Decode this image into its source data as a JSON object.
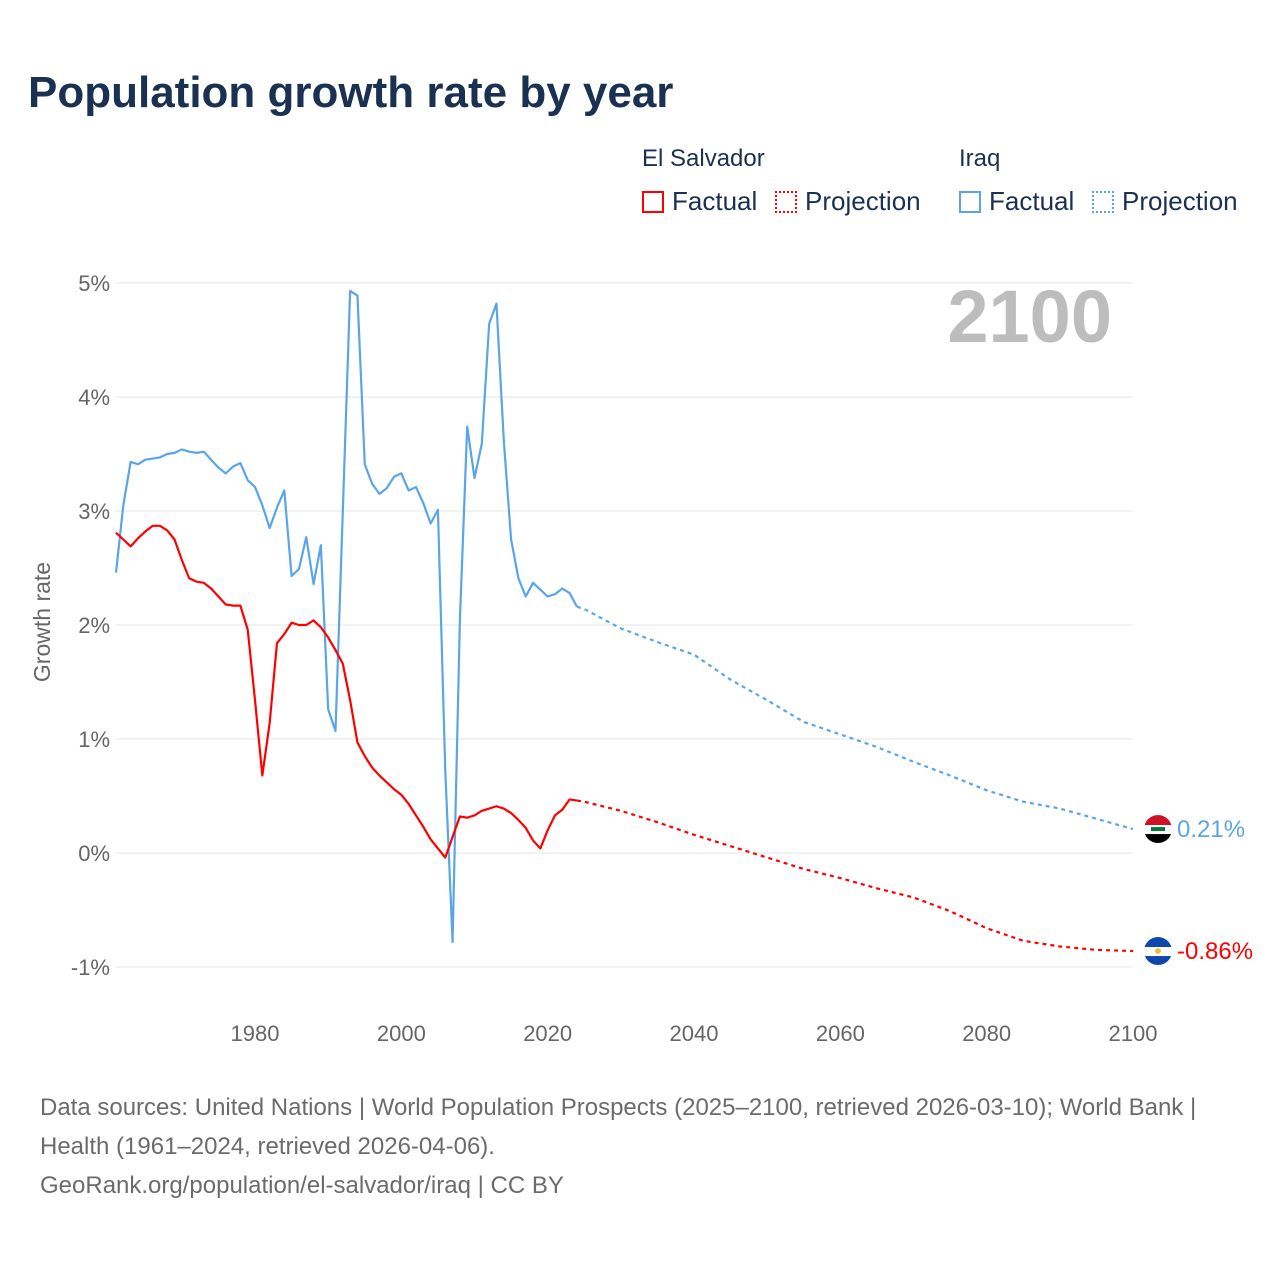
{
  "title": "Population growth rate by year",
  "legend": {
    "groups": [
      {
        "name": "El Salvador",
        "factual": "Factual",
        "projection": "Projection",
        "color": "#ff0000"
      },
      {
        "name": "Iraq",
        "factual": "Factual",
        "projection": "Projection",
        "color": "#5aa5e8"
      }
    ]
  },
  "footer": {
    "sources": "Data sources: United Nations | World Population Prospects (2025–2100, retrieved 2026-03-10); World Bank | Health (1961–2024, retrieved 2026-04-06).",
    "credit": "GeoRank.org/population/el-salvador/iraq | CC BY"
  },
  "chart_data": {
    "type": "line",
    "title": "Population growth rate by year",
    "year_label": "2100",
    "ylabel": "Growth rate",
    "xlim": [
      1961,
      2100
    ],
    "ylim": [
      -1.3,
      5.1
    ],
    "xticks": [
      "1980",
      "2000",
      "2020",
      "2040",
      "2060",
      "2080",
      "2100"
    ],
    "yticks": [
      "-1%",
      "0%",
      "1%",
      "2%",
      "3%",
      "4%",
      "5%"
    ],
    "grid": true,
    "series": [
      {
        "name": "Iraq",
        "color": "#5aa5e8",
        "end_label": "0.21%",
        "flag": "iraq-flag",
        "factual_start": 1961,
        "factual": [
          2.46,
          3.05,
          3.43,
          3.41,
          3.45,
          3.46,
          3.47,
          3.5,
          3.51,
          3.54,
          3.52,
          3.51,
          3.52,
          3.45,
          3.38,
          3.33,
          3.39,
          3.42,
          3.27,
          3.21,
          3.05,
          2.85,
          3.03,
          3.18,
          2.43,
          2.49,
          2.77,
          2.36,
          2.7,
          1.26,
          1.07,
          3.0,
          4.93,
          4.89,
          3.41,
          3.24,
          3.15,
          3.2,
          3.3,
          3.33,
          3.18,
          3.21,
          3.07,
          2.89,
          3.01,
          0.73,
          -0.78,
          2.04,
          3.74,
          3.29,
          3.59,
          4.64,
          4.82,
          3.62,
          2.75,
          2.41,
          2.25,
          2.37,
          2.31,
          2.25,
          2.27,
          2.32,
          2.28,
          2.16
        ],
        "projection_years": [
          2025,
          2030,
          2035,
          2040,
          2045,
          2050,
          2055,
          2060,
          2065,
          2070,
          2075,
          2080,
          2085,
          2090,
          2095,
          2100
        ],
        "projection": [
          2.14,
          1.97,
          1.85,
          1.74,
          1.52,
          1.34,
          1.15,
          1.04,
          0.93,
          0.8,
          0.68,
          0.55,
          0.45,
          0.39,
          0.3,
          0.21
        ]
      },
      {
        "name": "El Salvador",
        "color": "#ff0000",
        "end_label": "-0.86%",
        "flag": "el-salvador-flag",
        "factual_start": 1961,
        "factual": [
          2.81,
          2.75,
          2.69,
          2.76,
          2.82,
          2.87,
          2.87,
          2.83,
          2.75,
          2.57,
          2.41,
          2.38,
          2.37,
          2.32,
          2.25,
          2.18,
          2.17,
          2.17,
          1.96,
          1.34,
          0.68,
          1.14,
          1.84,
          1.92,
          2.02,
          2.0,
          2.0,
          2.04,
          1.98,
          1.89,
          1.78,
          1.66,
          1.34,
          0.97,
          0.85,
          0.75,
          0.68,
          0.62,
          0.56,
          0.51,
          0.43,
          0.33,
          0.23,
          0.12,
          0.04,
          -0.04,
          0.14,
          0.32,
          0.31,
          0.33,
          0.37,
          0.39,
          0.41,
          0.39,
          0.35,
          0.29,
          0.22,
          0.11,
          0.04,
          0.2,
          0.33,
          0.38,
          0.47,
          0.46
        ],
        "projection_years": [
          2025,
          2030,
          2035,
          2040,
          2045,
          2050,
          2055,
          2060,
          2065,
          2070,
          2075,
          2080,
          2085,
          2090,
          2095,
          2100
        ],
        "projection": [
          0.45,
          0.37,
          0.27,
          0.16,
          0.06,
          -0.04,
          -0.14,
          -0.22,
          -0.31,
          -0.39,
          -0.51,
          -0.66,
          -0.77,
          -0.82,
          -0.85,
          -0.86
        ]
      }
    ]
  }
}
